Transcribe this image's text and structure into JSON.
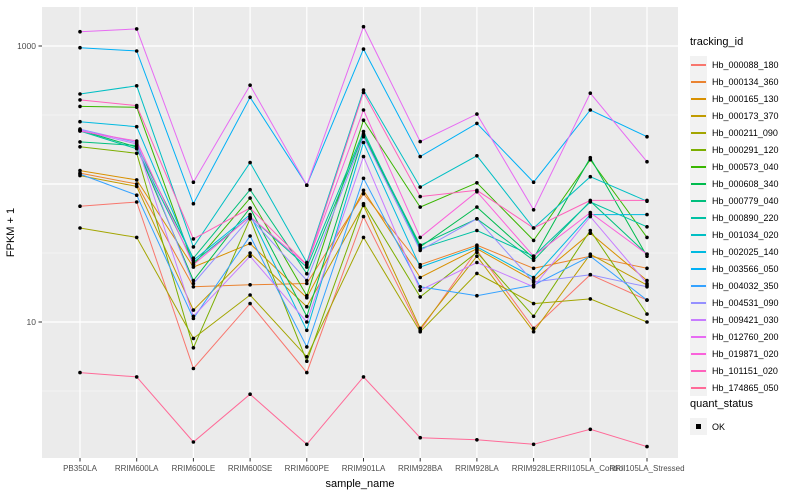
{
  "chart_data": {
    "type": "line",
    "title": "",
    "xlabel": "sample_name",
    "ylabel": "FPKM + 1",
    "y_scale": "log10",
    "y_ticks": [
      {
        "label": "10",
        "value": 10
      },
      {
        "label": "1000",
        "value": 1000
      }
    ],
    "y_minor_ticks": [
      3.162,
      31.62,
      316.2
    ],
    "ylim_log": [
      0.97,
      1820
    ],
    "grid": "on",
    "legend_position": "right",
    "categories": [
      "PB350LA",
      "RRIM600LA",
      "RRIM600LE",
      "RRIM600SE",
      "RRIM600PE",
      "RRIM901LA",
      "RRIM928BA",
      "RRIM928LA",
      "RRIM928LE",
      "RRII105LA_Control",
      "RRII105LA_Stressed"
    ],
    "series": [
      {
        "name": "Hb_000088_180",
        "color": "#F8766D",
        "values": [
          69,
          74,
          4.6,
          13.6,
          4.3,
          58,
          8.7,
          33,
          9,
          22,
          14.4
        ]
      },
      {
        "name": "Hb_000134_360",
        "color": "#EA8331",
        "values": [
          120,
          100,
          18,
          18.6,
          19,
          85,
          26,
          36,
          24.5,
          30,
          24.5
        ]
      },
      {
        "name": "Hb_000165_130",
        "color": "#D89000",
        "values": [
          125,
          107,
          25,
          37,
          15,
          90,
          21,
          34,
          20,
          44,
          20
        ]
      },
      {
        "name": "Hb_000173_370",
        "color": "#C09B00",
        "values": [
          115,
          96,
          12.2,
          31.6,
          12.9,
          70,
          9,
          30,
          8.5,
          31,
          18.5
        ]
      },
      {
        "name": "Hb_000211_090",
        "color": "#A3A500",
        "values": [
          48,
          41,
          7.6,
          15.7,
          5.6,
          41,
          8.5,
          22.5,
          13.6,
          14.7,
          10
        ]
      },
      {
        "name": "Hb_000291_120",
        "color": "#7CAE00",
        "values": [
          186,
          167,
          6.5,
          56,
          5.2,
          72,
          15.2,
          32,
          11,
          46,
          11.4
        ]
      },
      {
        "name": "Hb_000573_040",
        "color": "#39B600",
        "values": [
          365,
          360,
          26,
          79,
          15.5,
          290,
          68,
          102,
          39,
          150,
          41
        ]
      },
      {
        "name": "Hb_000608_340",
        "color": "#00BB4E",
        "values": [
          246,
          185,
          20,
          67,
          11,
          225,
          35,
          68,
          29,
          155,
          30
        ]
      },
      {
        "name": "Hb_000779_040",
        "color": "#00BF7D",
        "values": [
          202,
          190,
          29,
          91,
          22.4,
          230,
          36,
          56,
          28,
          75,
          31
        ]
      },
      {
        "name": "Hb_000890_220",
        "color": "#00C1A3",
        "values": [
          242,
          180,
          27,
          58,
          25,
          240,
          34,
          46,
          30,
          74,
          49
        ]
      },
      {
        "name": "Hb_001034_020",
        "color": "#00BFC4",
        "values": [
          449,
          515,
          35,
          143,
          27,
          480,
          95,
          160,
          48,
          113,
          75
        ]
      },
      {
        "name": "Hb_002025_140",
        "color": "#00BAE0",
        "values": [
          283,
          260,
          28,
          60,
          8.7,
          200,
          25,
          35,
          21,
          60,
          60
        ]
      },
      {
        "name": "Hb_003566_050",
        "color": "#00B0F6",
        "values": [
          972,
          920,
          72,
          425,
          98,
          950,
          158,
          275,
          103,
          344,
          220
        ]
      },
      {
        "name": "Hb_004032_350",
        "color": "#35A2FF",
        "values": [
          118,
          83,
          10.6,
          42,
          6.6,
          110,
          18,
          15.5,
          18.5,
          30,
          14.4
        ]
      },
      {
        "name": "Hb_004531_090",
        "color": "#9590FF",
        "values": [
          250,
          200,
          19,
          57,
          20,
          220,
          33,
          56,
          19.5,
          22,
          18
        ]
      },
      {
        "name": "Hb_009421_030",
        "color": "#C77CFF",
        "values": [
          246,
          195,
          11,
          30,
          10,
          158,
          17,
          27,
          18,
          58,
          19
        ]
      },
      {
        "name": "Hb_012760_200",
        "color": "#E76BF3",
        "values": [
          1270,
          1330,
          103,
          520,
          98,
          1380,
          203,
          321,
          65,
          455,
          145
        ]
      },
      {
        "name": "Hb_019871_020",
        "color": "#FA62DB",
        "values": [
          242,
          205,
          26,
          58,
          26,
          344,
          41,
          88,
          30,
          62,
          31
        ]
      },
      {
        "name": "Hb_101151_020",
        "color": "#FF62BC",
        "values": [
          407,
          370,
          40,
          67,
          26,
          460,
          81,
          90,
          48,
          76,
          76
        ]
      },
      {
        "name": "Hb_174865_050",
        "color": "#FF6A98",
        "values": [
          4.3,
          4.0,
          1.35,
          3.0,
          1.3,
          4.0,
          1.45,
          1.4,
          1.3,
          1.67,
          1.25
        ]
      }
    ],
    "point_color": "#000000",
    "panel_background": "#EBEBEB",
    "gridline_color": "#FFFFFF",
    "tick_label_color": "#4D4D4D"
  },
  "legend": {
    "tracking_title": "tracking_id",
    "quant_title": "quant_status",
    "quant_items": [
      {
        "label": "OK"
      }
    ]
  }
}
